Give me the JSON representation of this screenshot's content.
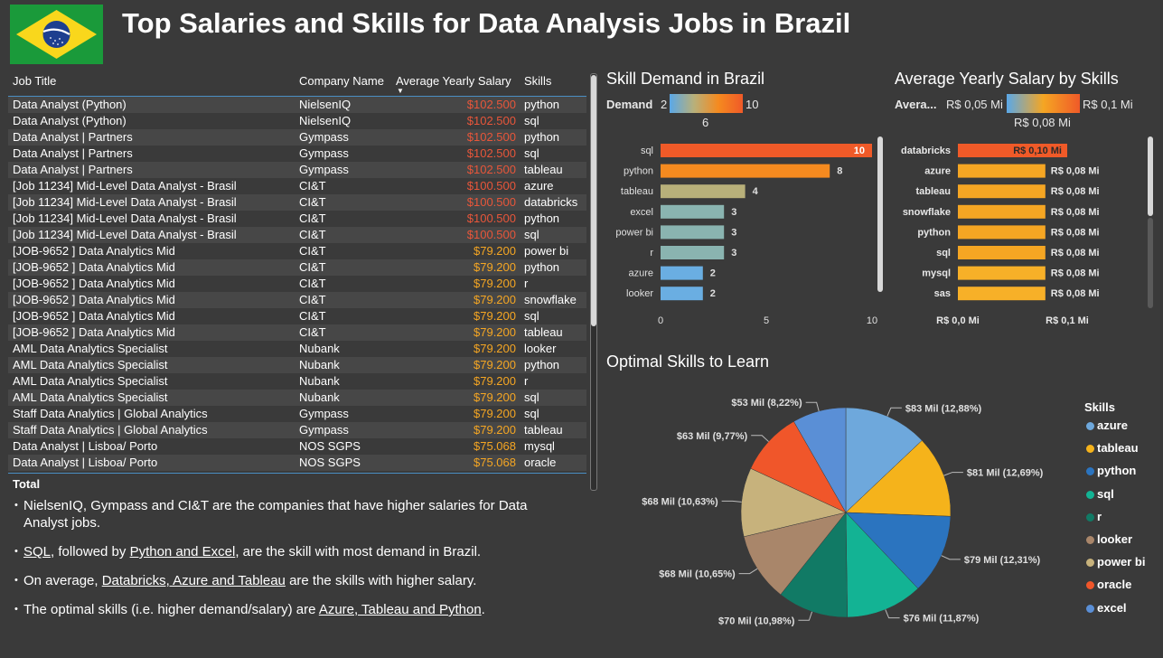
{
  "title": "Top Salaries and Skills for Data Analysis Jobs in Brazil",
  "colors": {
    "background": "#3a3a3a",
    "high_salary": "#e8563a",
    "mid_salary": "#f5a623",
    "accent_blue": "#4a8ec4"
  },
  "table": {
    "headers": [
      "Job Title",
      "Company Name",
      "Average Yearly Salary",
      "Skills"
    ],
    "rows": [
      [
        "Data Analyst (Python)",
        "NielsenIQ",
        "$102.500",
        "python"
      ],
      [
        "Data Analyst (Python)",
        "NielsenIQ",
        "$102.500",
        "sql"
      ],
      [
        "Data Analyst | Partners",
        "Gympass",
        "$102.500",
        "python"
      ],
      [
        "Data Analyst | Partners",
        "Gympass",
        "$102.500",
        "sql"
      ],
      [
        "Data Analyst | Partners",
        "Gympass",
        "$102.500",
        "tableau"
      ],
      [
        "[Job 11234] Mid-Level Data Analyst - Brasil",
        "CI&T",
        "$100.500",
        "azure"
      ],
      [
        "[Job 11234] Mid-Level Data Analyst - Brasil",
        "CI&T",
        "$100.500",
        "databricks"
      ],
      [
        "[Job 11234] Mid-Level Data Analyst - Brasil",
        "CI&T",
        "$100.500",
        "python"
      ],
      [
        "[Job 11234] Mid-Level Data Analyst - Brasil",
        "CI&T",
        "$100.500",
        "sql"
      ],
      [
        "[JOB-9652 ] Data Analytics Mid",
        "CI&T",
        "$79.200",
        "power bi"
      ],
      [
        "[JOB-9652 ] Data Analytics Mid",
        "CI&T",
        "$79.200",
        "python"
      ],
      [
        "[JOB-9652 ] Data Analytics Mid",
        "CI&T",
        "$79.200",
        "r"
      ],
      [
        "[JOB-9652 ] Data Analytics Mid",
        "CI&T",
        "$79.200",
        "snowflake"
      ],
      [
        "[JOB-9652 ] Data Analytics Mid",
        "CI&T",
        "$79.200",
        "sql"
      ],
      [
        "[JOB-9652 ] Data Analytics Mid",
        "CI&T",
        "$79.200",
        "tableau"
      ],
      [
        "AML Data Analytics Specialist",
        "Nubank",
        "$79.200",
        "looker"
      ],
      [
        "AML Data Analytics Specialist",
        "Nubank",
        "$79.200",
        "python"
      ],
      [
        "AML Data Analytics Specialist",
        "Nubank",
        "$79.200",
        "r"
      ],
      [
        "AML Data Analytics Specialist",
        "Nubank",
        "$79.200",
        "sql"
      ],
      [
        "Staff Data Analytics | Global Analytics",
        "Gympass",
        "$79.200",
        "sql"
      ],
      [
        "Staff Data Analytics | Global Analytics",
        "Gympass",
        "$79.200",
        "tableau"
      ],
      [
        "Data Analyst | Lisboa/ Porto",
        "NOS SGPS",
        "$75.068",
        "mysql"
      ],
      [
        "Data Analyst | Lisboa/ Porto",
        "NOS SGPS",
        "$75.068",
        "oracle"
      ]
    ],
    "total_label": "Total"
  },
  "notes": [
    {
      "parts": [
        {
          "t": "NielsenIQ, Gympass and CI&T are the companies that have higher salaries for Data Analyst jobs.",
          "u": false
        }
      ]
    },
    {
      "parts": [
        {
          "t": "SQL",
          "u": true
        },
        {
          "t": ", followed by ",
          "u": false
        },
        {
          "t": "Python and Excel",
          "u": true
        },
        {
          "t": ", are the skill with most demand in Brazil.",
          "u": false
        }
      ]
    },
    {
      "parts": [
        {
          "t": "On average, ",
          "u": false
        },
        {
          "t": "Databricks, Azure and Tableau",
          "u": true
        },
        {
          "t": " are the skills with higher salary.",
          "u": false
        }
      ]
    },
    {
      "parts": [
        {
          "t": "The optimal skills (i.e. higher demand/salary) are ",
          "u": false
        },
        {
          "t": "Azure, Tableau and Python",
          "u": true
        },
        {
          "t": ".",
          "u": false
        }
      ]
    }
  ],
  "chart_data": [
    {
      "type": "bar",
      "title": "Skill Demand in Brazil",
      "legend": {
        "label": "Demand",
        "min": "2",
        "mid": "6",
        "max": "10"
      },
      "categories": [
        "sql",
        "python",
        "tableau",
        "excel",
        "power bi",
        "r",
        "azure",
        "looker"
      ],
      "values": [
        10,
        8,
        4,
        3,
        3,
        3,
        2,
        2
      ],
      "colors": [
        "#f05a28",
        "#f58a1f",
        "#b8b07a",
        "#8ab4b0",
        "#8ab4b0",
        "#8ab4b0",
        "#6aaee2",
        "#6aaee2"
      ],
      "xticks": [
        "0",
        "5",
        "10"
      ],
      "xlim": [
        0,
        10
      ]
    },
    {
      "type": "bar",
      "title": "Average Yearly Salary by Skills",
      "legend": {
        "label": "Avera...",
        "min": "R$ 0,05 Mi",
        "mid": "R$ 0,08 Mi",
        "max": "R$ 0,1 Mi"
      },
      "categories": [
        "databricks",
        "azure",
        "tableau",
        "snowflake",
        "python",
        "sql",
        "mysql",
        "sas"
      ],
      "values": [
        0.1,
        0.08,
        0.08,
        0.08,
        0.08,
        0.08,
        0.08,
        0.08
      ],
      "labels": [
        "R$ 0,10 Mi",
        "R$ 0,08 Mi",
        "R$ 0,08 Mi",
        "R$ 0,08 Mi",
        "R$ 0,08 Mi",
        "R$ 0,08 Mi",
        "R$ 0,08 Mi",
        "R$ 0,08 Mi"
      ],
      "colors": [
        "#f05a28",
        "#f5a623",
        "#f5a623",
        "#f5a623",
        "#f5a623",
        "#f5a623",
        "#f7b028",
        "#f7b028"
      ],
      "xticks": [
        "R$ 0,0 Mi",
        "R$ 0,1 Mi"
      ],
      "xlim": [
        0,
        0.1
      ]
    },
    {
      "type": "pie",
      "title": "Optimal Skills to Learn",
      "legend_title": "Skills",
      "slices": [
        {
          "name": "azure",
          "value": 83,
          "label": "$83 Mil (12,88%)",
          "color": "#6ea8dc"
        },
        {
          "name": "tableau",
          "value": 81,
          "label": "$81 Mil (12,69%)",
          "color": "#f5b31b"
        },
        {
          "name": "python",
          "value": 79,
          "label": "$79 Mil (12,31%)",
          "color": "#2b74bf"
        },
        {
          "name": "sql",
          "value": 76,
          "label": "$76 Mil (11,87%)",
          "color": "#13b394"
        },
        {
          "name": "r",
          "value": 70,
          "label": "$70 Mil (10,98%)",
          "color": "#117a65"
        },
        {
          "name": "looker",
          "value": 68,
          "label": "$68 Mil (10,65%)",
          "color": "#a9866a"
        },
        {
          "name": "power bi",
          "value": 68,
          "label": "$68 Mil (10,63%)",
          "color": "#c7b27c"
        },
        {
          "name": "oracle",
          "value": 63,
          "label": "$63 Mil (9,77%)",
          "color": "#f0562a"
        },
        {
          "name": "excel",
          "value": 53,
          "label": "$53 Mil (8,22%)",
          "color": "#5a8fd6"
        }
      ]
    }
  ]
}
